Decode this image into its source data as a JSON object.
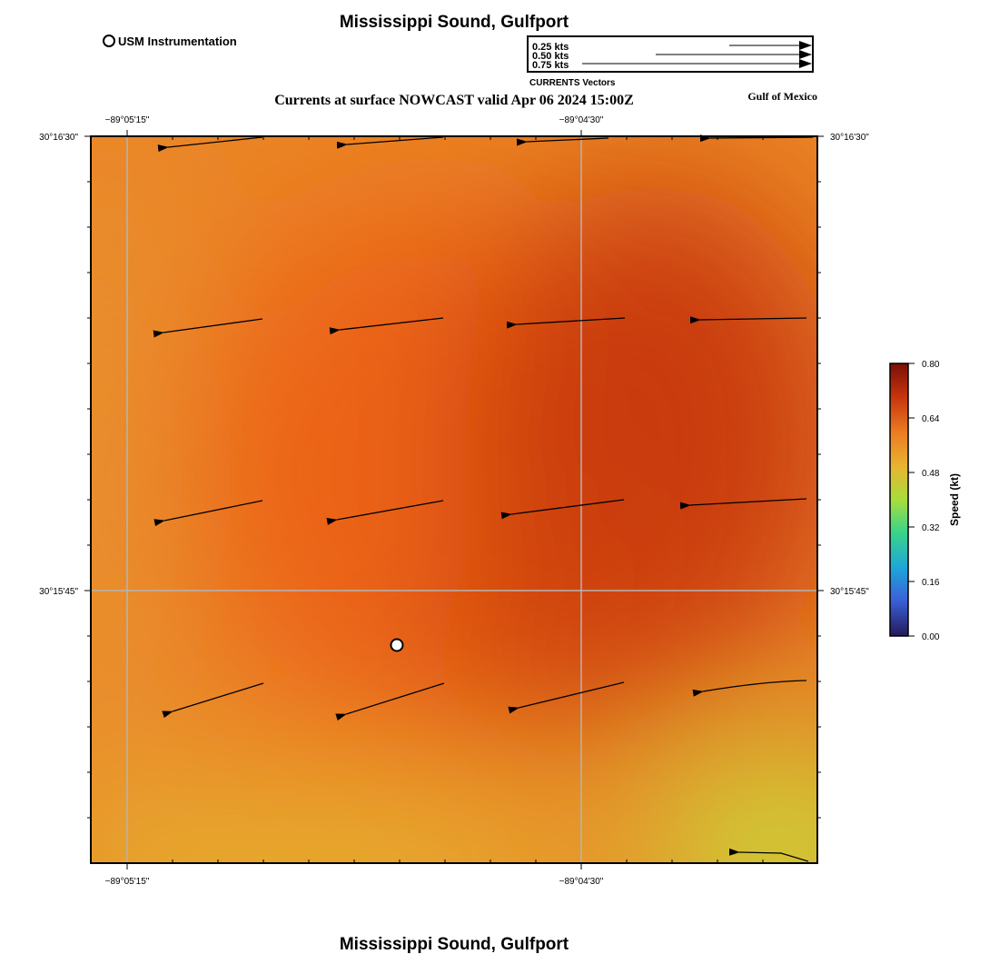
{
  "header": {
    "title": "Mississippi Sound, Gulfport",
    "station_label": "USM Instrumentation",
    "subtitle": "Currents at surface NOWCAST valid Apr 06 2024 15:00Z",
    "region_label": "Gulf of Mexico"
  },
  "vector_legend": {
    "caption": "CURRENTS Vectors",
    "entries": [
      {
        "label": "0.25 kts",
        "speed_kt": 0.25
      },
      {
        "label": "0.50 kts",
        "speed_kt": 0.5
      },
      {
        "label": "0.75 kts",
        "speed_kt": 0.75
      }
    ]
  },
  "map": {
    "lon_ticks": [
      "−89°05'15\"",
      "−89°04'30\""
    ],
    "lat_ticks": [
      "30°16'30\"",
      "30°15'45\""
    ]
  },
  "colorbar": {
    "label": "Speed (kt)",
    "ticks": [
      "0.80",
      "0.64",
      "0.48",
      "0.32",
      "0.16",
      "0.00"
    ],
    "colors": [
      "#7a1008",
      "#c4330c",
      "#ec7a22",
      "#e8b530",
      "#a8dd3c",
      "#3ad48a",
      "#1ea6d8",
      "#3a5fd8",
      "#241a5a"
    ]
  },
  "footer": {
    "title": "Mississippi Sound, Gulfport"
  }
}
